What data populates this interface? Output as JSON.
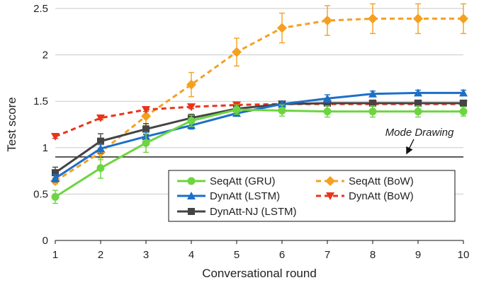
{
  "chart_data": {
    "type": "line",
    "xlabel": "Conversational round",
    "ylabel": "Test score",
    "x": [
      1,
      2,
      3,
      4,
      5,
      6,
      7,
      8,
      9,
      10
    ],
    "xlim": [
      1,
      10
    ],
    "ylim": [
      0,
      2.5
    ],
    "xticks": [
      "1",
      "2",
      "3",
      "4",
      "5",
      "6",
      "7",
      "8",
      "9",
      "10"
    ],
    "yticks": [
      {
        "value": 0,
        "label": "0"
      },
      {
        "value": 0.5,
        "label": "0.5"
      },
      {
        "value": 1,
        "label": "1"
      },
      {
        "value": 1.5,
        "label": "1.5"
      },
      {
        "value": 2,
        "label": "2"
      },
      {
        "value": 2.5,
        "label": "2.5"
      }
    ],
    "series": [
      {
        "name": "SeqAtt (GRU)",
        "color": "#6cd540",
        "dash": "solid",
        "marker": "circle",
        "values": [
          0.47,
          0.78,
          1.05,
          1.29,
          1.41,
          1.4,
          1.39,
          1.39,
          1.39,
          1.39
        ],
        "errors": [
          0.07,
          0.11,
          0.1,
          0.06,
          0.05,
          0.06,
          0.06,
          0.06,
          0.06,
          0.05
        ]
      },
      {
        "name": "DynAtt (LSTM)",
        "color": "#1e6fc8",
        "dash": "solid",
        "marker": "triangle",
        "values": [
          0.67,
          0.99,
          1.12,
          1.24,
          1.37,
          1.47,
          1.53,
          1.58,
          1.59,
          1.59
        ],
        "errors": [
          0.04,
          0.05,
          0.05,
          0.04,
          0.03,
          0.03,
          0.04,
          0.03,
          0.03,
          0.03
        ]
      },
      {
        "name": "DynAtt-NJ (LSTM)",
        "color": "#444444",
        "dash": "solid",
        "marker": "square",
        "values": [
          0.73,
          1.07,
          1.2,
          1.32,
          1.42,
          1.47,
          1.48,
          1.48,
          1.48,
          1.48
        ],
        "errors": [
          0.06,
          0.08,
          0.06,
          0.04,
          0.03,
          0.03,
          0.03,
          0.03,
          0.03,
          0.03
        ]
      },
      {
        "name": "SeqAtt (BoW)",
        "color": "#f5a01f",
        "dash": "dashed",
        "marker": "diamond",
        "values": [
          0.64,
          0.95,
          1.34,
          1.68,
          2.03,
          2.29,
          2.37,
          2.39,
          2.39,
          2.39
        ],
        "errors": [
          0.03,
          0.08,
          0.1,
          0.13,
          0.15,
          0.16,
          0.16,
          0.16,
          0.16,
          0.16
        ]
      },
      {
        "name": "DynAtt (BoW)",
        "color": "#e8341c",
        "dash": "dashed",
        "marker": "triangle-down",
        "values": [
          1.12,
          1.32,
          1.41,
          1.44,
          1.46,
          1.47,
          1.47,
          1.47,
          1.47,
          1.47
        ],
        "errors": [
          0.02,
          0.02,
          0.02,
          0.02,
          0.02,
          0.02,
          0.02,
          0.02,
          0.02,
          0.02
        ]
      }
    ],
    "reference_line": {
      "value": 0.9,
      "label": "Mode Drawing"
    },
    "legend": "bottom-right, two columns",
    "grid": "horizontal"
  }
}
